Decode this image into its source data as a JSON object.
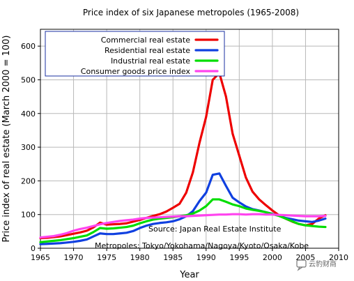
{
  "chart_data": {
    "type": "line",
    "title": "Price index of six Japanese metropoles (1965-2008)",
    "xlabel": "Year",
    "ylabel": "Price index of real estate (March 2000 = 100)",
    "xlim": [
      1965,
      2010
    ],
    "ylim": [
      0,
      650
    ],
    "x_ticks": [
      "1965",
      "1970",
      "1975",
      "1980",
      "1985",
      "1990",
      "1995",
      "2000",
      "2005",
      "2010"
    ],
    "y_ticks": [
      "0",
      "100",
      "200",
      "300",
      "400",
      "500",
      "600"
    ],
    "grid": true,
    "legend_position": "top-left",
    "annotations": [
      "Source: Japan Real Estate Institute",
      "Metropoles: Tokyo/Yokohama/Nagoya/Kyoto/Osaka/Kobe"
    ],
    "series": [
      {
        "name": "Commercial real estate",
        "color": "#ee0000",
        "points": [
          [
            1965,
            30
          ],
          [
            1966,
            31
          ],
          [
            1967,
            33
          ],
          [
            1968,
            35
          ],
          [
            1969,
            39
          ],
          [
            1970,
            43
          ],
          [
            1971,
            47
          ],
          [
            1972,
            52
          ],
          [
            1973,
            62
          ],
          [
            1974,
            76
          ],
          [
            1975,
            70
          ],
          [
            1976,
            71
          ],
          [
            1977,
            72
          ],
          [
            1978,
            74
          ],
          [
            1979,
            79
          ],
          [
            1980,
            84
          ],
          [
            1981,
            90
          ],
          [
            1982,
            96
          ],
          [
            1983,
            101
          ],
          [
            1984,
            109
          ],
          [
            1985,
            120
          ],
          [
            1986,
            132
          ],
          [
            1987,
            165
          ],
          [
            1988,
            225
          ],
          [
            1989,
            313
          ],
          [
            1990,
            390
          ],
          [
            1991,
            500
          ],
          [
            1992,
            520
          ],
          [
            1993,
            450
          ],
          [
            1994,
            340
          ],
          [
            1995,
            275
          ],
          [
            1996,
            210
          ],
          [
            1997,
            168
          ],
          [
            1998,
            145
          ],
          [
            1999,
            128
          ],
          [
            2000,
            112
          ],
          [
            2001,
            98
          ],
          [
            2002,
            88
          ],
          [
            2003,
            79
          ],
          [
            2004,
            72
          ],
          [
            2005,
            68
          ],
          [
            2006,
            72
          ],
          [
            2007,
            88
          ],
          [
            2008,
            98
          ]
        ]
      },
      {
        "name": "Residential real estate",
        "color": "#1040e0",
        "points": [
          [
            1965,
            12
          ],
          [
            1966,
            13
          ],
          [
            1967,
            14
          ],
          [
            1968,
            15
          ],
          [
            1969,
            17
          ],
          [
            1970,
            19
          ],
          [
            1971,
            22
          ],
          [
            1972,
            26
          ],
          [
            1973,
            35
          ],
          [
            1974,
            44
          ],
          [
            1975,
            42
          ],
          [
            1976,
            42
          ],
          [
            1977,
            44
          ],
          [
            1978,
            46
          ],
          [
            1979,
            51
          ],
          [
            1980,
            60
          ],
          [
            1981,
            67
          ],
          [
            1982,
            72
          ],
          [
            1983,
            75
          ],
          [
            1984,
            77
          ],
          [
            1985,
            80
          ],
          [
            1986,
            86
          ],
          [
            1987,
            95
          ],
          [
            1988,
            110
          ],
          [
            1989,
            140
          ],
          [
            1990,
            165
          ],
          [
            1991,
            218
          ],
          [
            1992,
            222
          ],
          [
            1993,
            185
          ],
          [
            1994,
            150
          ],
          [
            1995,
            136
          ],
          [
            1996,
            124
          ],
          [
            1997,
            116
          ],
          [
            1998,
            112
          ],
          [
            1999,
            107
          ],
          [
            2000,
            102
          ],
          [
            2001,
            96
          ],
          [
            2002,
            90
          ],
          [
            2003,
            86
          ],
          [
            2004,
            82
          ],
          [
            2005,
            80
          ],
          [
            2006,
            78
          ],
          [
            2007,
            82
          ],
          [
            2008,
            88
          ]
        ]
      },
      {
        "name": "Industrial real estate",
        "color": "#00dd00",
        "points": [
          [
            1965,
            18
          ],
          [
            1966,
            20
          ],
          [
            1967,
            22
          ],
          [
            1968,
            24
          ],
          [
            1969,
            27
          ],
          [
            1970,
            30
          ],
          [
            1971,
            34
          ],
          [
            1972,
            38
          ],
          [
            1973,
            48
          ],
          [
            1974,
            60
          ],
          [
            1975,
            58
          ],
          [
            1976,
            59
          ],
          [
            1977,
            61
          ],
          [
            1978,
            63
          ],
          [
            1979,
            67
          ],
          [
            1980,
            74
          ],
          [
            1981,
            80
          ],
          [
            1982,
            85
          ],
          [
            1983,
            88
          ],
          [
            1984,
            90
          ],
          [
            1985,
            92
          ],
          [
            1986,
            95
          ],
          [
            1987,
            98
          ],
          [
            1988,
            103
          ],
          [
            1989,
            112
          ],
          [
            1990,
            125
          ],
          [
            1991,
            145
          ],
          [
            1992,
            145
          ],
          [
            1993,
            138
          ],
          [
            1994,
            130
          ],
          [
            1995,
            125
          ],
          [
            1996,
            118
          ],
          [
            1997,
            114
          ],
          [
            1998,
            111
          ],
          [
            1999,
            107
          ],
          [
            2000,
            101
          ],
          [
            2001,
            96
          ],
          [
            2002,
            88
          ],
          [
            2003,
            80
          ],
          [
            2004,
            72
          ],
          [
            2005,
            68
          ],
          [
            2006,
            66
          ],
          [
            2007,
            64
          ],
          [
            2008,
            63
          ]
        ]
      },
      {
        "name": "Consumer goods price index",
        "color": "#ff44ee",
        "points": [
          [
            1965,
            32
          ],
          [
            1966,
            34
          ],
          [
            1967,
            36
          ],
          [
            1968,
            40
          ],
          [
            1969,
            45
          ],
          [
            1970,
            52
          ],
          [
            1971,
            57
          ],
          [
            1972,
            61
          ],
          [
            1973,
            66
          ],
          [
            1974,
            71
          ],
          [
            1975,
            75
          ],
          [
            1976,
            78
          ],
          [
            1977,
            81
          ],
          [
            1978,
            83
          ],
          [
            1979,
            85
          ],
          [
            1980,
            88
          ],
          [
            1981,
            90
          ],
          [
            1982,
            91
          ],
          [
            1983,
            92
          ],
          [
            1984,
            93
          ],
          [
            1985,
            94
          ],
          [
            1986,
            95
          ],
          [
            1987,
            95
          ],
          [
            1988,
            96
          ],
          [
            1989,
            97
          ],
          [
            1990,
            98
          ],
          [
            1991,
            99
          ],
          [
            1992,
            100
          ],
          [
            1993,
            100
          ],
          [
            1994,
            101
          ],
          [
            1995,
            101
          ],
          [
            1996,
            100
          ],
          [
            1997,
            101
          ],
          [
            1998,
            101
          ],
          [
            1999,
            100
          ],
          [
            2000,
            100
          ],
          [
            2001,
            99
          ],
          [
            2002,
            98
          ],
          [
            2003,
            97
          ],
          [
            2004,
            96
          ],
          [
            2005,
            95
          ],
          [
            2006,
            95
          ],
          [
            2007,
            95
          ],
          [
            2008,
            96
          ]
        ]
      }
    ]
  },
  "watermark": {
    "text": "云豹财商",
    "icon": "speech-bubble-icon"
  }
}
